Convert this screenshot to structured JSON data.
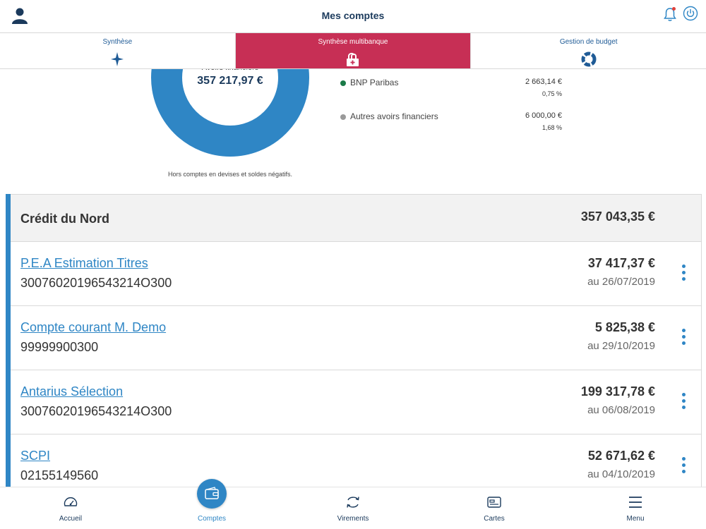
{
  "header": {
    "title": "Mes comptes"
  },
  "tabs": [
    {
      "label": "Synthèse",
      "icon": "star-icon"
    },
    {
      "label": "Synthèse multibanque",
      "icon": "lock-add-icon"
    },
    {
      "label": "Gestion de budget",
      "icon": "ring-chart-icon"
    }
  ],
  "summary": {
    "donut_label": "Avoirs financiers",
    "donut_value": "357 217,97 €",
    "note": "Hors comptes en devises et soldes négatifs.",
    "legend": [
      {
        "name": "BNP Paribas",
        "amount": "2 663,14 €",
        "percent": "0,75 %",
        "color": "#1a7a48"
      },
      {
        "name": "Autres avoirs financiers",
        "amount": "6 000,00 €",
        "percent": "1,68 %",
        "color": "#9a9a9a"
      }
    ]
  },
  "bank": {
    "name": "Crédit du Nord",
    "total": "357 043,35 €"
  },
  "accounts": [
    {
      "name": "P.E.A Estimation Titres",
      "number": "30076020196543214O300",
      "balance": "37 417,37 €",
      "date": "au 26/07/2019"
    },
    {
      "name": "Compte courant M. Demo",
      "number": "99999900300",
      "balance": "5 825,38 €",
      "date": "au 29/10/2019"
    },
    {
      "name": "Antarius Sélection",
      "number": "30076020196543214O300",
      "balance": "199 317,78 €",
      "date": "au 06/08/2019"
    },
    {
      "name": "SCPI",
      "number": "02155149560",
      "balance": "52 671,62 €",
      "date": "au 04/10/2019"
    }
  ],
  "nav": [
    {
      "label": "Accueil",
      "icon": "speedometer-icon"
    },
    {
      "label": "Comptes",
      "icon": "wallet-icon"
    },
    {
      "label": "Virements",
      "icon": "transfer-icon"
    },
    {
      "label": "Cartes",
      "icon": "card-icon"
    },
    {
      "label": "Menu",
      "icon": "hamburger-icon"
    }
  ],
  "colors": {
    "accent": "#2f86c5",
    "active_tab": "#c72f55",
    "navy": "#1b3a5c"
  }
}
